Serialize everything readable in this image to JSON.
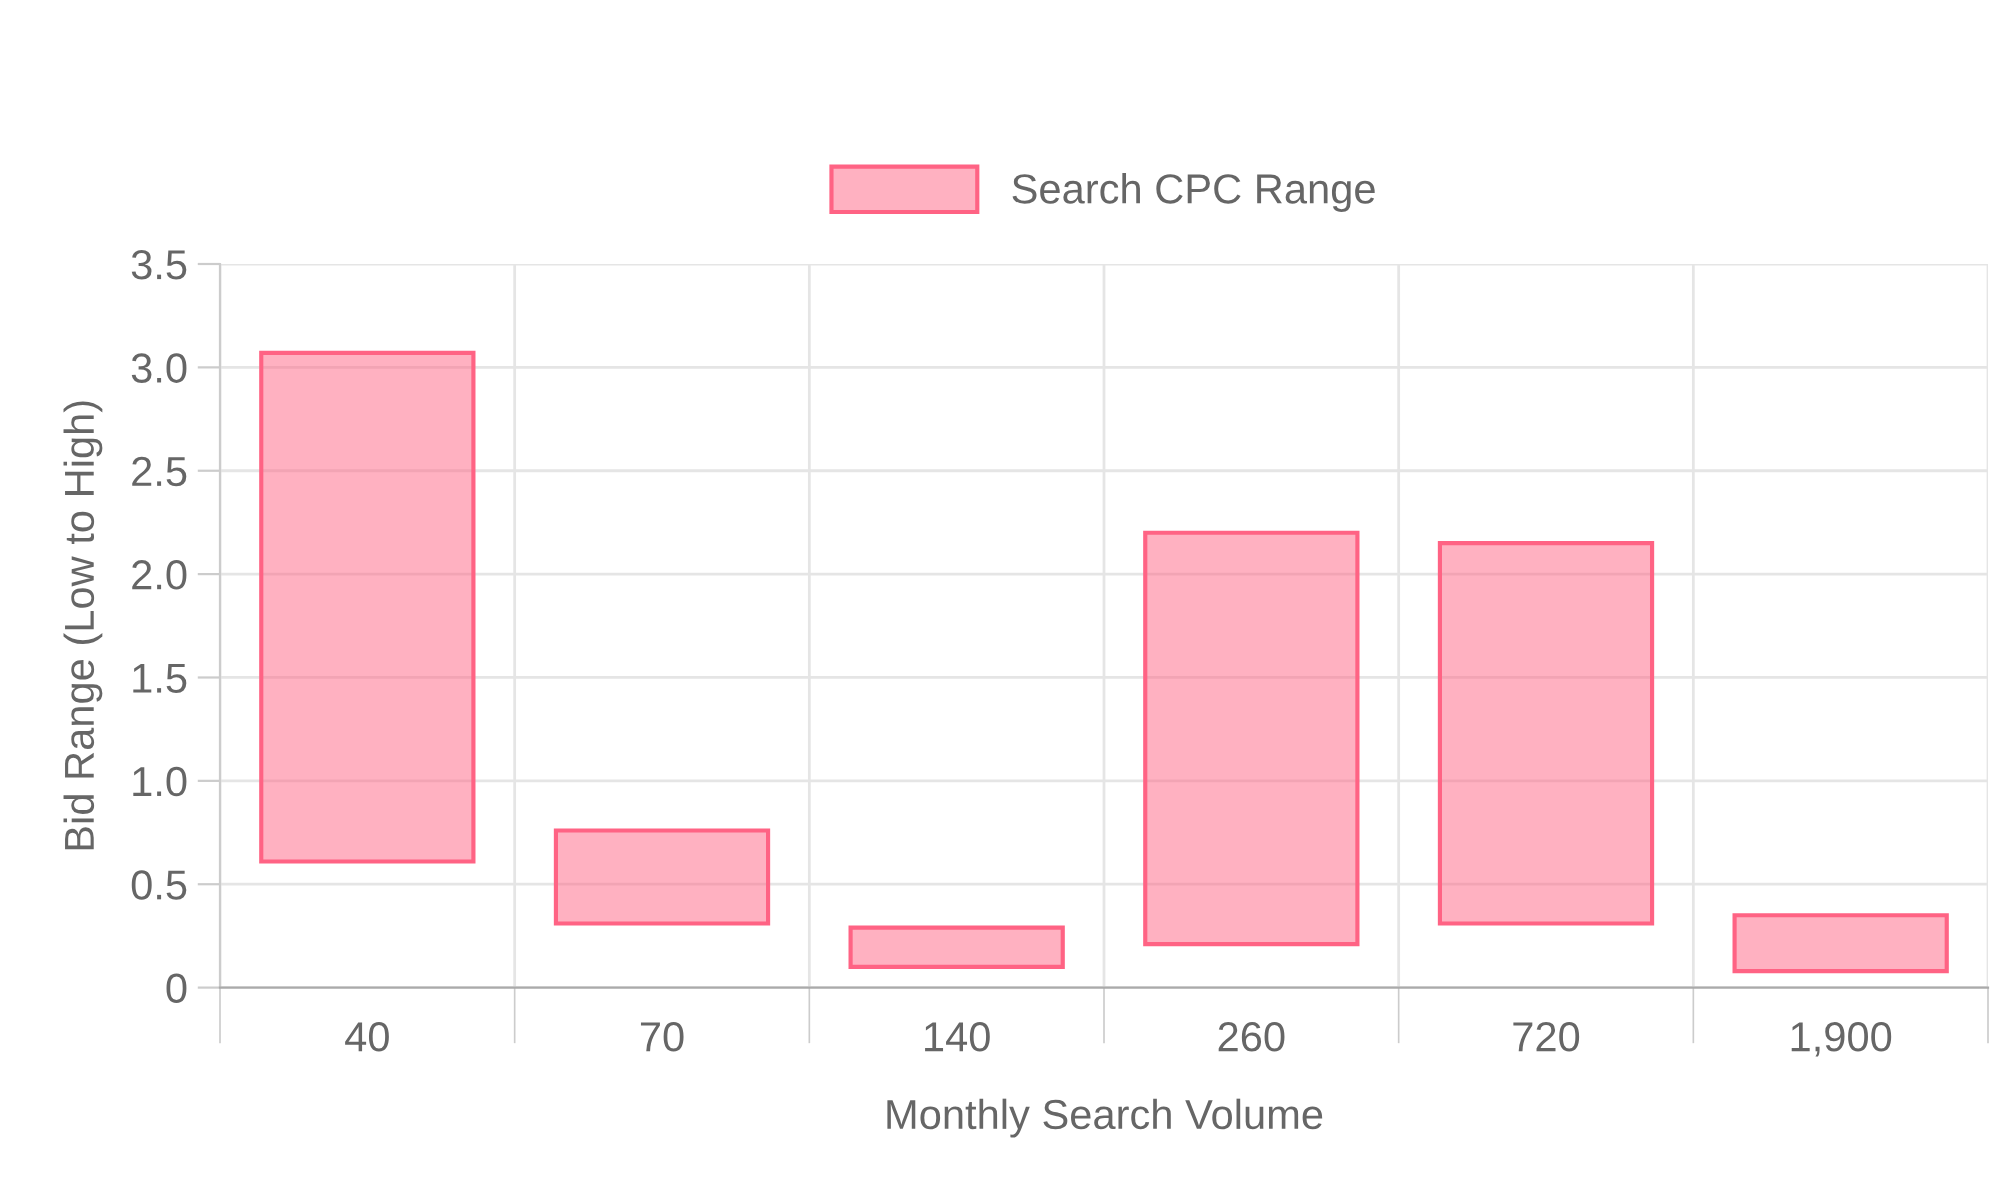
{
  "chart_data": {
    "type": "bar",
    "xlabel": "Monthly Search Volume",
    "ylabel": "Bid Range (Low to High)",
    "categories": [
      "40",
      "70",
      "140",
      "260",
      "720",
      "1,900"
    ],
    "series": [
      {
        "name": "Search CPC Range",
        "color": "#ff6384",
        "base": [
          0.61,
          0.31,
          0.1,
          0.21,
          0.31,
          0.08
        ],
        "values": [
          2.46,
          0.45,
          0.19,
          1.99,
          1.84,
          0.27
        ]
      }
    ],
    "ylim": [
      0,
      3.5
    ],
    "yticks": [
      0,
      {
        "value": 0.5,
        "label": "0.5"
      },
      {
        "value": 1,
        "label": "1.0"
      },
      {
        "value": 1.5,
        "label": "1.5"
      },
      {
        "value": 2,
        "label": "2.0"
      },
      {
        "value": 2.5,
        "label": "2.5"
      },
      {
        "value": 3,
        "label": "3.0"
      },
      {
        "value": 3.5,
        "label": "3.5"
      }
    ],
    "grid": true,
    "legend": "top"
  }
}
